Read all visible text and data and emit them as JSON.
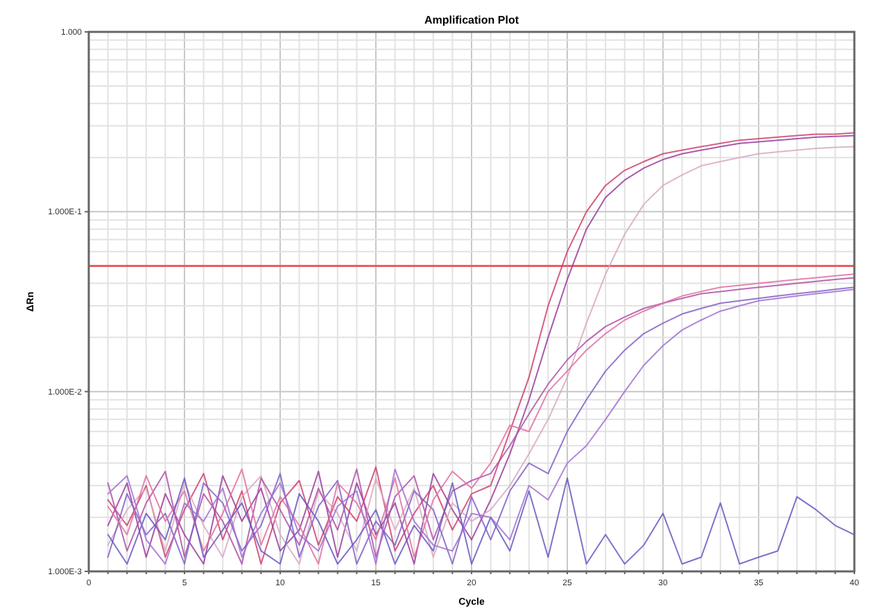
{
  "chart_data": {
    "type": "line",
    "title": "Amplification Plot",
    "xlabel": "Cycle",
    "ylabel": "ΔRn",
    "log": "y",
    "grid": true,
    "marker": "none",
    "line_style": "solid",
    "xlim": [
      0,
      40
    ],
    "ylim": [
      0.001,
      1
    ],
    "xticks": [
      0,
      {
        "value": 1,
        "label": null
      },
      {
        "value": 2,
        "label": null
      },
      {
        "value": 3,
        "label": null
      },
      {
        "value": 4,
        "label": null
      },
      5,
      {
        "value": 6,
        "label": null
      },
      {
        "value": 7,
        "label": null
      },
      {
        "value": 8,
        "label": null
      },
      {
        "value": 9,
        "label": null
      },
      10,
      {
        "value": 11,
        "label": null
      },
      {
        "value": 12,
        "label": null
      },
      {
        "value": 13,
        "label": null
      },
      {
        "value": 14,
        "label": null
      },
      15,
      {
        "value": 16,
        "label": null
      },
      {
        "value": 17,
        "label": null
      },
      {
        "value": 18,
        "label": null
      },
      {
        "value": 19,
        "label": null
      },
      20,
      {
        "value": 21,
        "label": null
      },
      {
        "value": 22,
        "label": null
      },
      {
        "value": 23,
        "label": null
      },
      {
        "value": 24,
        "label": null
      },
      25,
      {
        "value": 26,
        "label": null
      },
      {
        "value": 27,
        "label": null
      },
      {
        "value": 28,
        "label": null
      },
      {
        "value": 29,
        "label": null
      },
      30,
      {
        "value": 31,
        "label": null
      },
      {
        "value": 32,
        "label": null
      },
      {
        "value": 33,
        "label": null
      },
      {
        "value": 34,
        "label": null
      },
      35,
      {
        "value": 36,
        "label": null
      },
      {
        "value": 37,
        "label": null
      },
      {
        "value": 38,
        "label": null
      },
      {
        "value": 39,
        "label": null
      },
      40
    ],
    "yticks": [
      {
        "value": 0.001,
        "label": "1.000E-3"
      },
      {
        "value": 0.002,
        "label": null
      },
      {
        "value": 0.003,
        "label": null
      },
      {
        "value": 0.004,
        "label": null
      },
      {
        "value": 0.005,
        "label": null
      },
      {
        "value": 0.006,
        "label": null
      },
      {
        "value": 0.007,
        "label": null
      },
      {
        "value": 0.008,
        "label": null
      },
      {
        "value": 0.009,
        "label": null
      },
      {
        "value": 0.01,
        "label": "1.000E-2"
      },
      {
        "value": 0.02,
        "label": null
      },
      {
        "value": 0.03,
        "label": null
      },
      {
        "value": 0.04,
        "label": null
      },
      {
        "value": 0.05,
        "label": null
      },
      {
        "value": 0.06,
        "label": null
      },
      {
        "value": 0.07,
        "label": null
      },
      {
        "value": 0.08,
        "label": null
      },
      {
        "value": 0.09,
        "label": null
      },
      {
        "value": 0.1,
        "label": "1.000E-1"
      },
      {
        "value": 0.2,
        "label": null
      },
      {
        "value": 0.3,
        "label": null
      },
      {
        "value": 0.4,
        "label": null
      },
      {
        "value": 0.5,
        "label": null
      },
      {
        "value": 0.6,
        "label": null
      },
      {
        "value": 0.7,
        "label": null
      },
      {
        "value": 0.8,
        "label": null
      },
      {
        "value": 0.9,
        "label": null
      },
      {
        "value": 1,
        "label": "1.000"
      }
    ],
    "ref_lines": [
      {
        "axis": "y",
        "value": 0.05,
        "color": "#ee5a5a"
      }
    ],
    "x": [
      1,
      2,
      3,
      4,
      5,
      6,
      7,
      8,
      9,
      10,
      11,
      12,
      13,
      14,
      15,
      16,
      17,
      18,
      19,
      20,
      21,
      22,
      23,
      24,
      25,
      26,
      27,
      28,
      29,
      30,
      31,
      32,
      33,
      34,
      35,
      36,
      37,
      38,
      39,
      40
    ],
    "series": [
      {
        "color": "#d0406e",
        "values": [
          0.0025,
          0.0018,
          0.003,
          0.0012,
          0.0022,
          0.0035,
          0.0015,
          0.0028,
          0.0011,
          0.0024,
          0.0032,
          0.0014,
          0.0026,
          0.0019,
          0.0038,
          0.0013,
          0.0021,
          0.003,
          0.0017,
          0.0027,
          0.003,
          0.006,
          0.012,
          0.03,
          0.06,
          0.1,
          0.14,
          0.17,
          0.19,
          0.21,
          0.22,
          0.23,
          0.24,
          0.25,
          0.255,
          0.26,
          0.265,
          0.27,
          0.27,
          0.275
        ]
      },
      {
        "color": "#9a3c9c",
        "values": [
          0.0018,
          0.0031,
          0.0012,
          0.0027,
          0.0016,
          0.0011,
          0.0034,
          0.0019,
          0.0029,
          0.0013,
          0.0017,
          0.0036,
          0.0012,
          0.0031,
          0.0016,
          0.0024,
          0.0011,
          0.0035,
          0.0022,
          0.0015,
          0.0025,
          0.0045,
          0.009,
          0.02,
          0.042,
          0.08,
          0.12,
          0.15,
          0.175,
          0.195,
          0.21,
          0.22,
          0.23,
          0.24,
          0.245,
          0.25,
          0.255,
          0.26,
          0.262,
          0.265
        ]
      },
      {
        "color": "#d8a8c0",
        "values": [
          0.0014,
          0.0022,
          0.0029,
          0.0013,
          0.0031,
          0.0018,
          0.0012,
          0.0026,
          0.0034,
          0.0016,
          0.0011,
          0.0028,
          0.0021,
          0.0013,
          0.0033,
          0.0017,
          0.0029,
          0.0012,
          0.0024,
          0.0019,
          0.0022,
          0.003,
          0.0045,
          0.007,
          0.012,
          0.024,
          0.045,
          0.075,
          0.11,
          0.14,
          0.16,
          0.18,
          0.19,
          0.2,
          0.21,
          0.215,
          0.22,
          0.225,
          0.228,
          0.23
        ]
      },
      {
        "color": "#b050a8",
        "values": [
          0.0031,
          0.0013,
          0.0024,
          0.0036,
          0.0012,
          0.0027,
          0.0019,
          0.0011,
          0.0033,
          0.0022,
          0.0014,
          0.0029,
          0.0017,
          0.0037,
          0.0012,
          0.0026,
          0.0034,
          0.0015,
          0.0028,
          0.0032,
          0.0035,
          0.005,
          0.0075,
          0.011,
          0.015,
          0.019,
          0.023,
          0.026,
          0.029,
          0.031,
          0.033,
          0.035,
          0.036,
          0.037,
          0.038,
          0.039,
          0.04,
          0.041,
          0.042,
          0.043
        ]
      },
      {
        "color": "#8060c8",
        "values": [
          0.0012,
          0.0027,
          0.0016,
          0.0021,
          0.0011,
          0.0031,
          0.0024,
          0.0013,
          0.0018,
          0.0035,
          0.0012,
          0.0023,
          0.0032,
          0.0011,
          0.0019,
          0.0014,
          0.0028,
          0.0022,
          0.0011,
          0.0026,
          0.0015,
          0.0028,
          0.004,
          0.0035,
          0.006,
          0.009,
          0.013,
          0.017,
          0.021,
          0.024,
          0.027,
          0.029,
          0.031,
          0.032,
          0.033,
          0.034,
          0.035,
          0.036,
          0.037,
          0.038
        ]
      },
      {
        "color": "#e070a0",
        "values": [
          0.0023,
          0.0016,
          0.0034,
          0.0019,
          0.0028,
          0.0013,
          0.0021,
          0.0037,
          0.0014,
          0.0026,
          0.0018,
          0.0011,
          0.0031,
          0.0024,
          0.0015,
          0.0033,
          0.0012,
          0.0025,
          0.0036,
          0.0029,
          0.004,
          0.0065,
          0.006,
          0.01,
          0.013,
          0.017,
          0.021,
          0.025,
          0.028,
          0.031,
          0.034,
          0.036,
          0.038,
          0.039,
          0.04,
          0.041,
          0.042,
          0.043,
          0.044,
          0.045
        ]
      },
      {
        "color": "#6858c0",
        "values": [
          0.0016,
          0.0011,
          0.0021,
          0.0015,
          0.0033,
          0.0012,
          0.0017,
          0.0024,
          0.0013,
          0.0011,
          0.0027,
          0.0019,
          0.0011,
          0.0015,
          0.0022,
          0.0011,
          0.0018,
          0.0013,
          0.0031,
          0.0011,
          0.002,
          0.0013,
          0.0028,
          0.0012,
          0.0033,
          0.0011,
          0.0016,
          0.0011,
          0.0014,
          0.0021,
          0.0011,
          0.0012,
          0.0024,
          0.0011,
          0.0012,
          0.0013,
          0.0026,
          0.0022,
          0.0018,
          0.0016
        ]
      },
      {
        "color": "#a070d0",
        "values": [
          0.0027,
          0.0034,
          0.0015,
          0.0011,
          0.0024,
          0.0019,
          0.0029,
          0.0012,
          0.0021,
          0.0031,
          0.0016,
          0.0013,
          0.0023,
          0.0028,
          0.0011,
          0.0037,
          0.0019,
          0.0014,
          0.0013,
          0.0021,
          0.002,
          0.0015,
          0.003,
          0.0025,
          0.004,
          0.005,
          0.007,
          0.01,
          0.014,
          0.018,
          0.022,
          0.025,
          0.028,
          0.03,
          0.032,
          0.033,
          0.034,
          0.035,
          0.036,
          0.037
        ]
      }
    ]
  }
}
